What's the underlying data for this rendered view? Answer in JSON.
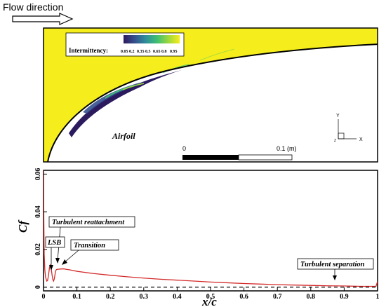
{
  "header": {
    "flow_direction_label": "Flow direction"
  },
  "top_panel": {
    "legend": {
      "title": "Intermittency:",
      "levels": [
        "0.05",
        "0.2",
        "0.35",
        "0.5",
        "0.65",
        "0.8",
        "0.95"
      ]
    },
    "airfoil_label": "Airfoil",
    "scale_bar": {
      "start_label": "0",
      "end_label": "0.1 (m)"
    },
    "axes_triad": {
      "y_label": "Y",
      "x_label": "X",
      "z_label": "Z"
    },
    "colors": {
      "field": "#f5ee1c",
      "separation_dark": "#2b1a5e",
      "surface": "#000000"
    }
  },
  "chart_data": {
    "type": "line",
    "title": "",
    "xlabel": "x/c",
    "ylabel": "Cf",
    "xlim": [
      0,
      1
    ],
    "ylim": [
      -0.002,
      0.062
    ],
    "x_ticks": [
      "0",
      "0.1",
      "0.2",
      "0.3",
      "0.4",
      "0.5",
      "0.6",
      "0.7",
      "0.8",
      "0.9",
      "1"
    ],
    "y_ticks": [
      "0",
      "0.02",
      "0.04",
      "0.06"
    ],
    "series": [
      {
        "name": "",
        "color": "#d42a2a",
        "x": [
          0.0,
          0.001,
          0.002,
          0.004,
          0.006,
          0.008,
          0.01,
          0.012,
          0.014,
          0.016,
          0.018,
          0.02,
          0.022,
          0.024,
          0.026,
          0.028,
          0.03,
          0.032,
          0.034,
          0.036,
          0.038,
          0.04,
          0.042,
          0.045,
          0.05,
          0.06,
          0.07,
          0.08,
          0.1,
          0.12,
          0.15,
          0.2,
          0.25,
          0.3,
          0.35,
          0.4,
          0.45,
          0.5,
          0.55,
          0.6,
          0.65,
          0.7,
          0.75,
          0.8,
          0.85,
          0.9,
          0.95,
          0.98,
          0.995,
          1.0
        ],
        "y": [
          0.062,
          0.035,
          0.0175,
          0.009,
          0.0055,
          0.0042,
          0.0032,
          0.0035,
          0.0052,
          0.0078,
          0.0105,
          0.0118,
          0.0112,
          0.0085,
          0.006,
          0.004,
          0.0032,
          0.0042,
          0.0062,
          0.0084,
          0.0092,
          0.0094,
          0.0095,
          0.0095,
          0.0096,
          0.0097,
          0.0094,
          0.0091,
          0.0084,
          0.0079,
          0.0072,
          0.0063,
          0.0055,
          0.0048,
          0.0042,
          0.0037,
          0.0032,
          0.0027,
          0.0023,
          0.0019,
          0.0016,
          0.0013,
          0.0011,
          0.0009,
          0.0007,
          0.0006,
          0.0004,
          0.0004,
          0.0004,
          0.003
        ]
      },
      {
        "name": "",
        "color": "#000000",
        "dash": "dashed",
        "x": [
          0,
          1
        ],
        "y": [
          0,
          0
        ]
      }
    ],
    "annotations": [
      {
        "text": "Turbulent reattachment",
        "points_to": {
          "x": 0.021,
          "y": 0.011
        }
      },
      {
        "text": "LSB",
        "points_to": {
          "x": 0.012,
          "y": 0.005
        }
      },
      {
        "text": "Transition",
        "points_to": {
          "x": 0.045,
          "y": 0.0095
        }
      },
      {
        "text": "Turbulent separation",
        "points_to": {
          "x": 0.885,
          "y": 0.0006
        }
      }
    ]
  }
}
